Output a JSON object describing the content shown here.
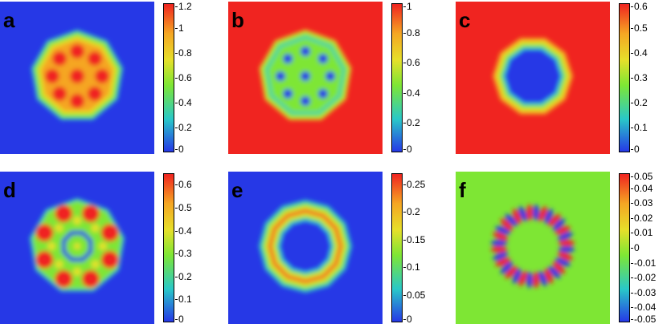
{
  "chart_data": [
    {
      "type": "heatmap",
      "label": "a",
      "pattern": "blob-spots",
      "colorbar": {
        "min": 0,
        "max": 1.2,
        "ticks": [
          "1.2",
          "1",
          "0.8",
          "0.6",
          "0.4",
          "0.2",
          "0"
        ]
      },
      "background": "blue"
    },
    {
      "type": "heatmap",
      "label": "b",
      "pattern": "blob-spots-inverse",
      "colorbar": {
        "min": 0,
        "max": 1,
        "ticks": [
          "1",
          "0.8",
          "0.6",
          "0.4",
          "0.2",
          "0"
        ]
      },
      "background": "red"
    },
    {
      "type": "heatmap",
      "label": "c",
      "pattern": "hole",
      "colorbar": {
        "min": 0,
        "max": 0.6,
        "ticks": [
          "0.6",
          "0.5",
          "0.4",
          "0.3",
          "0.2",
          "0.1",
          "0"
        ]
      },
      "background": "red"
    },
    {
      "type": "heatmap",
      "label": "d",
      "pattern": "lattice-ring",
      "colorbar": {
        "min": 0,
        "max": 0.65,
        "ticks": [
          "0.6",
          "0.5",
          "0.4",
          "0.3",
          "0.2",
          "0.1",
          "0"
        ]
      },
      "background": "blue"
    },
    {
      "type": "heatmap",
      "label": "e",
      "pattern": "ring",
      "colorbar": {
        "min": 0,
        "max": 0.27,
        "ticks": [
          "0.25",
          "0.2",
          "0.15",
          "0.1",
          "0.05",
          "0"
        ]
      },
      "background": "blue"
    },
    {
      "type": "heatmap",
      "label": "f",
      "pattern": "dipole-ring",
      "colorbar": {
        "min": -0.05,
        "max": 0.05,
        "ticks": [
          "0.05",
          "0.04",
          "0.03",
          "0.02",
          "0.01",
          "0",
          "-0.01",
          "-0.02",
          "-0.03",
          "-0.04",
          "-0.05"
        ]
      },
      "background": "green"
    }
  ],
  "colors": {
    "blue": "#2638e6",
    "cyan": "#29c8c8",
    "green": "#7ee634",
    "yellow": "#e6e02a",
    "orange": "#f5a623",
    "red": "#f02420"
  }
}
